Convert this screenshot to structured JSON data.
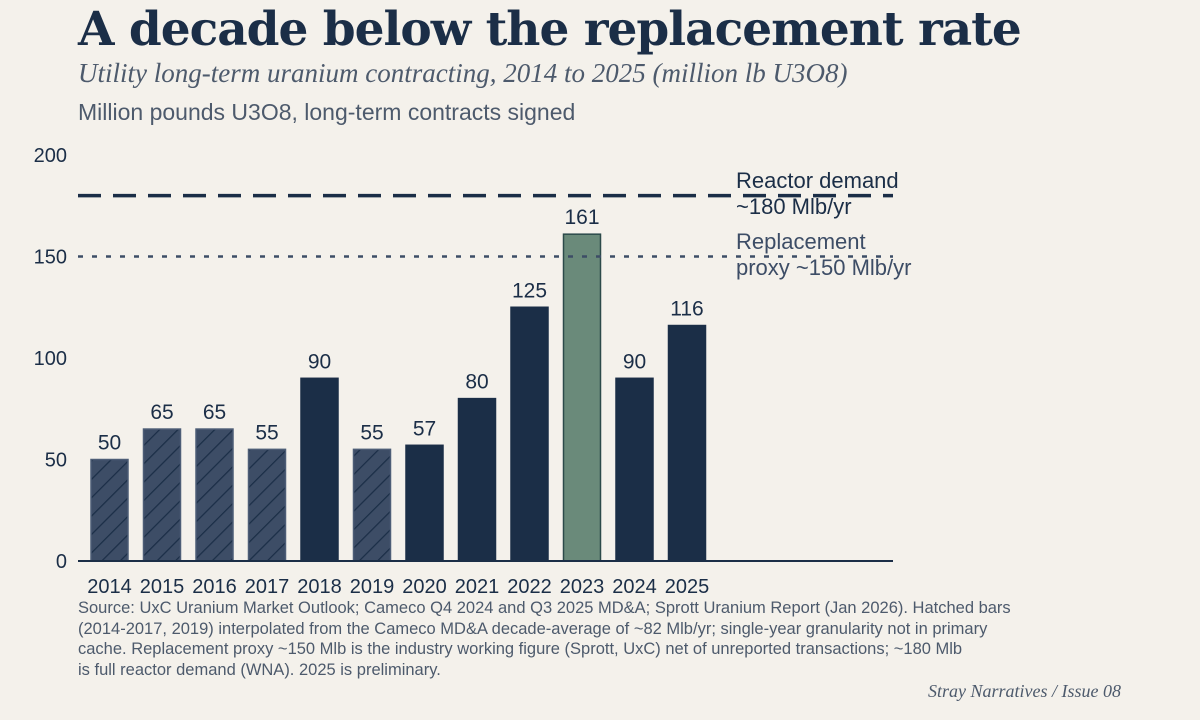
{
  "header": {
    "title": "A decade below the replacement rate",
    "subtitle": "Utility long-term uranium contracting, 2014 to 2025 (million lb U3O8)",
    "unit_label": "Million pounds U3O8, long-term contracts signed"
  },
  "chart_data": {
    "type": "bar",
    "categories": [
      "2014",
      "2015",
      "2016",
      "2017",
      "2018",
      "2019",
      "2020",
      "2021",
      "2022",
      "2023",
      "2024",
      "2025"
    ],
    "values": [
      50,
      65,
      65,
      55,
      90,
      55,
      57,
      80,
      125,
      161,
      90,
      116
    ],
    "hatched": [
      true,
      true,
      true,
      true,
      false,
      true,
      false,
      false,
      false,
      false,
      false,
      false
    ],
    "highlight": [
      "2023"
    ],
    "ylim": [
      0,
      200
    ],
    "yticks": [
      0,
      50,
      100,
      150,
      200
    ],
    "reference_lines": [
      {
        "value": 180,
        "style": "dashed",
        "label_lines": [
          "Reactor demand",
          "~180 Mlb/yr"
        ]
      },
      {
        "value": 150,
        "style": "dotted",
        "label_lines": [
          "Replacement",
          "proxy ~150 Mlb/yr"
        ]
      }
    ],
    "colors": {
      "bar": "#1b2e47",
      "hatched": "#3d4d66",
      "highlight": "#6a8a7a",
      "text": "#1b2e47",
      "ref_dotted": "#3d4d66"
    }
  },
  "footer": {
    "source_lines": [
      "Source: UxC Uranium Market Outlook; Cameco Q4 2024 and Q3 2025 MD&A; Sprott Uranium Report (Jan 2026). Hatched bars",
      "(2014-2017, 2019) interpolated from the Cameco MD&A decade-average of ~82 Mlb/yr; single-year granularity not in primary",
      "cache. Replacement proxy ~150 Mlb is the industry working figure (Sprott, UxC) net of unreported transactions; ~180 Mlb",
      "is full reactor demand (WNA). 2025 is preliminary."
    ],
    "credit": "Stray Narratives  /  Issue 08"
  }
}
